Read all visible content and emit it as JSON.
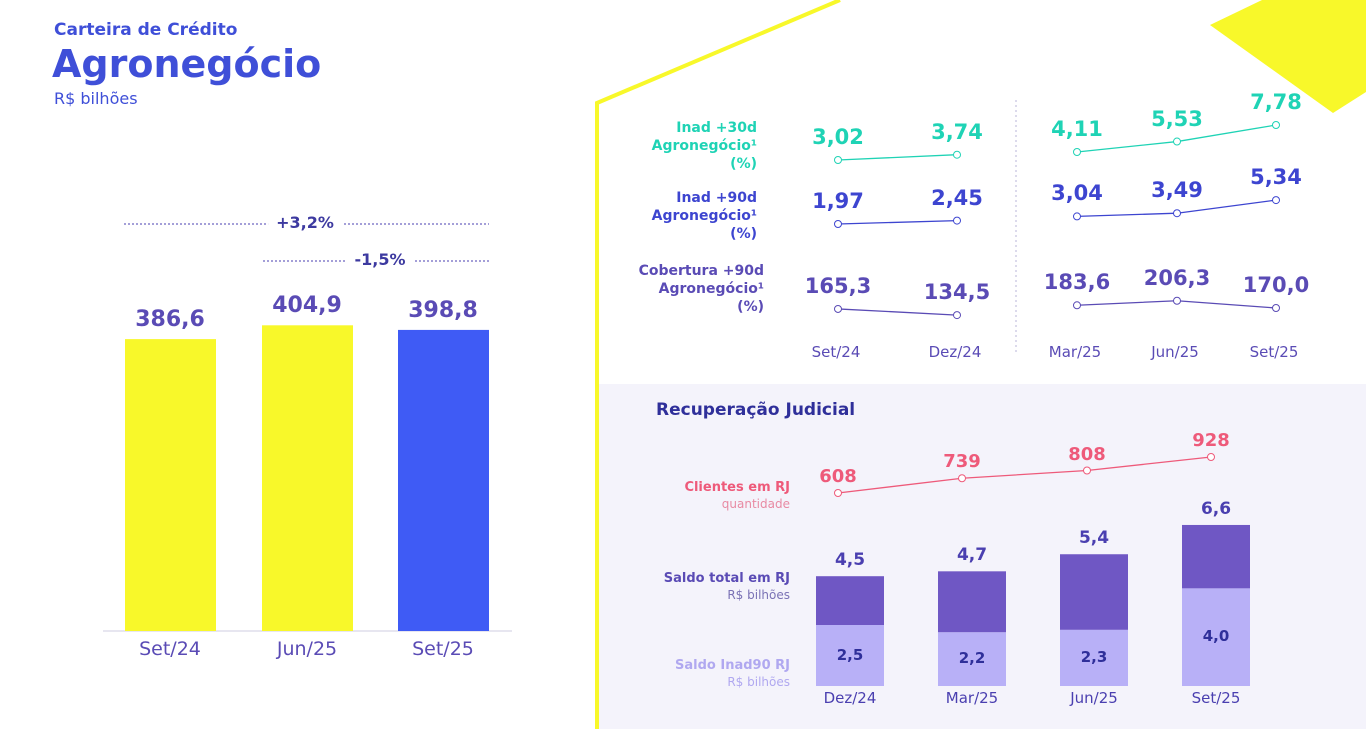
{
  "header": {
    "subtitle": "Carteira de Crédito",
    "title": "Agronegócio",
    "unit": "R$ bilhões"
  },
  "colors": {
    "yellow": "#f8f82a",
    "blue": "#3f5bf5",
    "teal": "#1fd3b5",
    "indigo": "#3d45d0",
    "purple": "#5a4bb5",
    "pink": "#ee5a7a",
    "darkbar": "#6f57c4",
    "lightbar": "#b8b0f7",
    "panel": "#f4f3fb"
  },
  "chart_data": [
    {
      "type": "bar",
      "title": "Carteira de Crédito Agronegócio",
      "ylabel": "R$ bilhões",
      "categories": [
        "Set/24",
        "Jun/25",
        "Set/25"
      ],
      "values": [
        386.6,
        404.9,
        398.8
      ],
      "labels": [
        "386,6",
        "404,9",
        "398,8"
      ],
      "annotations": [
        {
          "text": "+3,2%",
          "from": "Set/24",
          "to": "Set/25"
        },
        {
          "text": "-1,5%",
          "from": "Jun/25",
          "to": "Set/25"
        }
      ]
    },
    {
      "type": "line",
      "categories": [
        "Set/24",
        "Dez/24",
        "Mar/25",
        "Jun/25",
        "Set/25"
      ],
      "series": [
        {
          "name": "Inad +30d Agronegócio¹ (%)",
          "lines": [
            "Inad +30d",
            "Agronegócio¹",
            "(%)"
          ],
          "values": [
            3.02,
            3.74,
            4.11,
            5.53,
            7.78
          ],
          "labels": [
            "3,02",
            "3,74",
            "4,11",
            "5,53",
            "7,78"
          ]
        },
        {
          "name": "Inad +90d Agronegócio¹ (%)",
          "lines": [
            "Inad +90d",
            "Agronegócio¹",
            "(%)"
          ],
          "values": [
            1.97,
            2.45,
            3.04,
            3.49,
            5.34
          ],
          "labels": [
            "1,97",
            "2,45",
            "3,04",
            "3,49",
            "5,34"
          ]
        },
        {
          "name": "Cobertura +90d Agronegócio¹ (%)",
          "lines": [
            "Cobertura +90d",
            "Agronegócio¹",
            "(%)"
          ],
          "values": [
            165.3,
            134.5,
            183.6,
            206.3,
            170.0
          ],
          "labels": [
            "165,3",
            "134,5",
            "183,6",
            "206,3",
            "170,0"
          ]
        }
      ]
    },
    {
      "type": "bar",
      "title": "Recuperação Judicial",
      "categories": [
        "Dez/24",
        "Mar/25",
        "Jun/25",
        "Set/25"
      ],
      "clientes": {
        "name": "Clientes em RJ",
        "sub": "quantidade",
        "values": [
          608,
          739,
          808,
          928
        ],
        "labels": [
          "608",
          "739",
          "808",
          "928"
        ]
      },
      "saldo_total": {
        "name": "Saldo total em RJ",
        "sub": "R$ bilhões",
        "values": [
          4.5,
          4.7,
          5.4,
          6.6
        ],
        "labels": [
          "4,5",
          "4,7",
          "5,4",
          "6,6"
        ]
      },
      "saldo_inad90": {
        "name": "Saldo Inad90 RJ",
        "sub": "R$ bilhões",
        "values": [
          2.5,
          2.2,
          2.3,
          4.0
        ],
        "labels": [
          "2,5",
          "2,2",
          "2,3",
          "4,0"
        ]
      }
    }
  ]
}
